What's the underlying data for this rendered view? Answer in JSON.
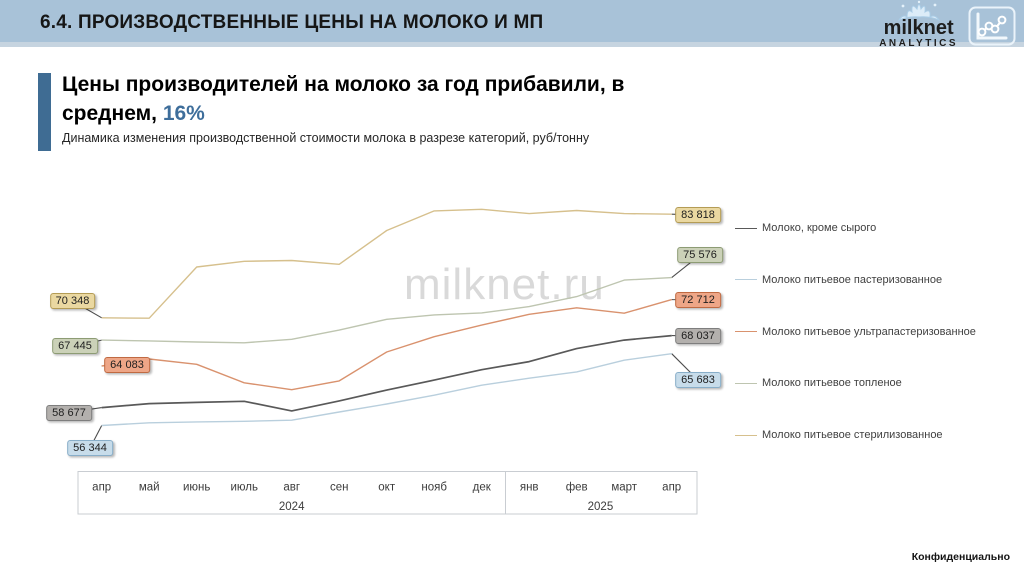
{
  "header": {
    "title": "6.4. ПРОИЗВОДСТВЕННЫЕ ЦЕНЫ НА МОЛОКО И МП",
    "brand": {
      "name": "milknet",
      "sub": "ANALYTICS"
    }
  },
  "headline": {
    "text": "Цены производителей на молоко за год прибавили, в среднем, ",
    "highlight": "16%"
  },
  "subtitle": "Динамика изменения производственной стоимости молока в разрезе категорий, руб/тонну",
  "watermark": "milknet.ru",
  "footer": {
    "confidential": "Конфиденциально"
  },
  "chart_data": {
    "type": "line",
    "unit": "руб/тонну",
    "grid": false,
    "legend_position": "right",
    "ylim": [
      55000,
      86000
    ],
    "x": [
      "апр",
      "май",
      "июнь",
      "июль",
      "авг",
      "сен",
      "окт",
      "нояб",
      "дек",
      "янв",
      "фев",
      "март",
      "апр"
    ],
    "year_groups": [
      {
        "label": "2024",
        "from": 0,
        "to": 8
      },
      {
        "label": "2025",
        "from": 9,
        "to": 12
      }
    ],
    "series": [
      {
        "name": "Молоко, кроме сырого",
        "color": "#595959",
        "label_bg": "#b3b0ad",
        "label_border": "#7e7e7e",
        "start_label": "58 677",
        "end_label": "68 037",
        "values": [
          58677,
          59200,
          59350,
          59500,
          58250,
          59550,
          60950,
          62250,
          63600,
          64650,
          66350,
          67450,
          68037
        ]
      },
      {
        "name": "Молоко питьевое пастеризованное",
        "color": "#b9cfdd",
        "label_bg": "#c7dcea",
        "label_border": "#88aec9",
        "start_label": "56 344",
        "end_label": "65 683",
        "values": [
          56344,
          56700,
          56820,
          56900,
          57040,
          58100,
          59150,
          60290,
          61590,
          62500,
          63320,
          64840,
          65683
        ]
      },
      {
        "name": "Молоко питьевое ультрапастеризованное",
        "color": "#d9926e",
        "label_bg": "#eea687",
        "label_border": "#c06a42",
        "start_label": "64 083",
        "end_label": "72 712",
        "values": [
          64083,
          65000,
          64300,
          61900,
          61000,
          62150,
          65900,
          67890,
          69400,
          70800,
          71650,
          70950,
          72712
        ]
      },
      {
        "name": "Молоко питьевое топленое",
        "color": "#bec5b0",
        "label_bg": "#cbd1b8",
        "label_border": "#8d9c74",
        "start_label": "67 445",
        "end_label": "75 576",
        "values": [
          67445,
          67350,
          67200,
          67100,
          67550,
          68750,
          70150,
          70730,
          70990,
          71800,
          73100,
          75250,
          75576
        ]
      },
      {
        "name": "Молоко питьевое стерилизованное",
        "color": "#d6c08d",
        "label_bg": "#ead8a1",
        "label_border": "#b49c55",
        "start_label": "70 348",
        "end_label": "83 818",
        "values": [
          70348,
          70300,
          76950,
          77700,
          77800,
          77300,
          81700,
          84250,
          84450,
          83900,
          84300,
          83900,
          83818
        ]
      }
    ]
  }
}
